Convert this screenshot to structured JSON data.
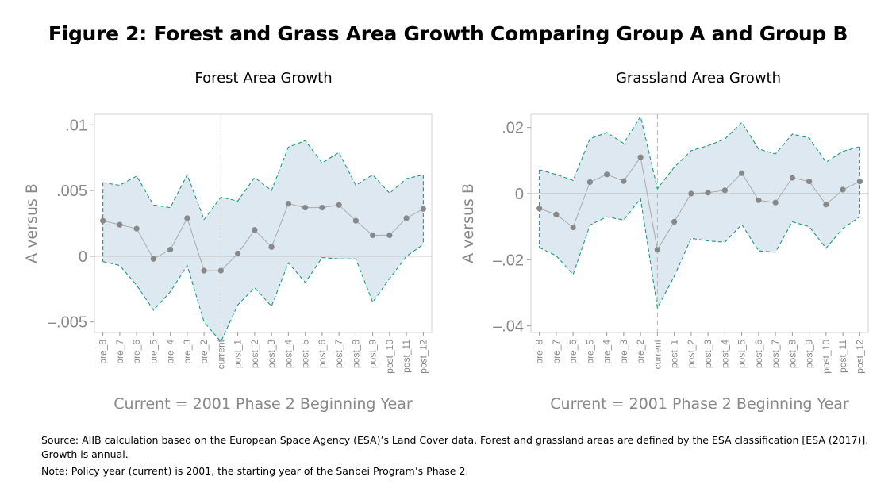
{
  "title": "Figure 2: Forest and Grass Area Growth Comparing Group A and Group B",
  "source_note": "Source: AIIB calculation based on the European Space Agency (ESA)’s Land Cover data. Forest and grassland areas are defined by the ESA classification [ESA (2017)]. Growth is annual.",
  "policy_note": "Note: Policy year (current) is 2001, the starting year of the Sanbei Program’s Phase 2.",
  "colors": {
    "band_fill": "#dde8f0",
    "band_edge": "#1f9b7c",
    "point": "#888888",
    "line": "#aaaaaa",
    "axis_text": "#888888"
  },
  "chart_data": [
    {
      "type": "line",
      "title": "Forest Area Growth",
      "xlabel": "Current = 2001 Phase 2 Beginning Year",
      "ylabel": "A versus B",
      "categories": [
        "pre_8",
        "pre_7",
        "pre_6",
        "pre_5",
        "pre_4",
        "pre_3",
        "pre_2",
        "current",
        "post_1",
        "post_2",
        "post_3",
        "post_4",
        "post_5",
        "post_6",
        "post_7",
        "post_8",
        "post_9",
        "post_10",
        "post_11",
        "post_12"
      ],
      "yticks": [
        -0.005,
        0,
        0.005,
        0.01
      ],
      "ytick_labels": [
        "–.005",
        "0",
        ".005",
        ".01"
      ],
      "ylim": [
        -0.0058,
        0.0108
      ],
      "reference_line_y": 0,
      "vertical_reference": "current",
      "series": [
        {
          "role": "estimate",
          "values": [
            0.0027,
            0.0024,
            0.0021,
            -0.0002,
            0.0005,
            0.0029,
            -0.0011,
            -0.0011,
            0.0002,
            0.002,
            0.0007,
            0.004,
            0.0037,
            0.0037,
            0.0039,
            0.0027,
            0.0016,
            0.0016,
            0.0029,
            0.0036
          ]
        },
        {
          "role": "upper_ci",
          "values": [
            0.0056,
            0.0054,
            0.0061,
            0.0039,
            0.0037,
            0.0062,
            0.0028,
            0.0045,
            0.0042,
            0.006,
            0.005,
            0.0083,
            0.0088,
            0.0071,
            0.0079,
            0.0054,
            0.0062,
            0.0048,
            0.0059,
            0.0062
          ]
        },
        {
          "role": "lower_ci",
          "values": [
            -0.0004,
            -0.0007,
            -0.0022,
            -0.0041,
            -0.0027,
            -0.0007,
            -0.005,
            -0.0065,
            -0.0037,
            -0.0024,
            -0.0038,
            -0.0005,
            -0.002,
            -0.0001,
            -0.0002,
            -0.0002,
            -0.0035,
            -0.0017,
            0.0,
            0.0009
          ]
        }
      ]
    },
    {
      "type": "line",
      "title": "Grassland Area Growth",
      "xlabel": "Current = 2001 Phase 2 Beginning Year",
      "ylabel": "A versus B",
      "categories": [
        "pre_8",
        "pre_7",
        "pre_6",
        "pre_5",
        "pre_4",
        "pre_3",
        "pre_2",
        "current",
        "post_1",
        "post_2",
        "post_3",
        "post_4",
        "post_5",
        "post_6",
        "post_7",
        "post_8",
        "post_9",
        "post_10",
        "post_11",
        "post_12"
      ],
      "yticks": [
        -0.04,
        -0.02,
        0,
        0.02
      ],
      "ytick_labels": [
        "–.04",
        "–.02",
        "0",
        ".02"
      ],
      "ylim": [
        -0.042,
        0.024
      ],
      "reference_line_y": 0,
      "vertical_reference": "current",
      "series": [
        {
          "role": "estimate",
          "values": [
            -0.0045,
            -0.0063,
            -0.0102,
            0.0035,
            0.0058,
            0.0038,
            0.011,
            -0.017,
            -0.0085,
            0.0,
            0.0003,
            0.001,
            0.0062,
            -0.002,
            -0.0027,
            0.0048,
            0.0037,
            -0.0033,
            0.0012,
            0.0037
          ]
        },
        {
          "role": "upper_ci",
          "values": [
            0.0072,
            0.0058,
            0.004,
            0.0166,
            0.0185,
            0.0152,
            0.0233,
            0.0015,
            0.008,
            0.013,
            0.0145,
            0.0165,
            0.0215,
            0.0135,
            0.012,
            0.018,
            0.0168,
            0.0095,
            0.0128,
            0.0142
          ]
        },
        {
          "role": "lower_ci",
          "values": [
            -0.0163,
            -0.0188,
            -0.0245,
            -0.0095,
            -0.007,
            -0.008,
            -0.0015,
            -0.0345,
            -0.025,
            -0.0135,
            -0.0143,
            -0.0147,
            -0.0093,
            -0.0173,
            -0.0177,
            -0.0085,
            -0.01,
            -0.0165,
            -0.0105,
            -0.007
          ]
        }
      ]
    }
  ]
}
